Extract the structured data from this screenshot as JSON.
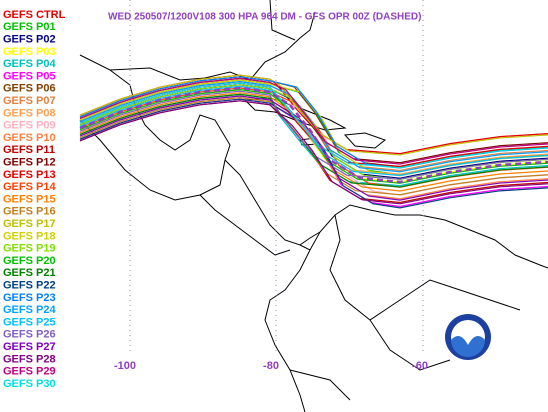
{
  "header": {
    "title": "WED 250507/1200V108  300 HPA 964 DM - GFS OPR 00Z (DASHED)"
  },
  "legend": [
    {
      "name": "GEFS CTRL",
      "color": "#e00000"
    },
    {
      "name": "GEFS P01",
      "color": "#00c000"
    },
    {
      "name": "GEFS P02",
      "color": "#000080"
    },
    {
      "name": "GEFS P03",
      "color": "#ffff00"
    },
    {
      "name": "GEFS P04",
      "color": "#00c0c0"
    },
    {
      "name": "GEFS P05",
      "color": "#ff00ff"
    },
    {
      "name": "GEFS P06",
      "color": "#804000"
    },
    {
      "name": "GEFS P07",
      "color": "#e08040"
    },
    {
      "name": "GEFS P08",
      "color": "#ffa050"
    },
    {
      "name": "GEFS P09",
      "color": "#ffb0c0"
    },
    {
      "name": "GEFS P10",
      "color": "#ff8040"
    },
    {
      "name": "GEFS P11",
      "color": "#c00000"
    },
    {
      "name": "GEFS P12",
      "color": "#800000"
    },
    {
      "name": "GEFS P13",
      "color": "#e00000"
    },
    {
      "name": "GEFS P14",
      "color": "#ff4000"
    },
    {
      "name": "GEFS P15",
      "color": "#ff8000"
    },
    {
      "name": "GEFS P16",
      "color": "#c08020"
    },
    {
      "name": "GEFS P17",
      "color": "#c0c000"
    },
    {
      "name": "GEFS P18",
      "color": "#d0d000"
    },
    {
      "name": "GEFS P19",
      "color": "#80e000"
    },
    {
      "name": "GEFS P20",
      "color": "#00c000"
    },
    {
      "name": "GEFS P21",
      "color": "#008000"
    },
    {
      "name": "GEFS P22",
      "color": "#004080"
    },
    {
      "name": "GEFS P23",
      "color": "#0080ff"
    },
    {
      "name": "GEFS P24",
      "color": "#00a0ff"
    },
    {
      "name": "GEFS P25",
      "color": "#00c0ff"
    },
    {
      "name": "GEFS P26",
      "color": "#8060c0"
    },
    {
      "name": "GEFS P27",
      "color": "#8000c0"
    },
    {
      "name": "GEFS P28",
      "color": "#800080"
    },
    {
      "name": "GEFS P29",
      "color": "#c00080"
    },
    {
      "name": "GEFS P30",
      "color": "#00e0e0"
    }
  ],
  "lon_labels": [
    "-100",
    "-80",
    "-60"
  ]
}
